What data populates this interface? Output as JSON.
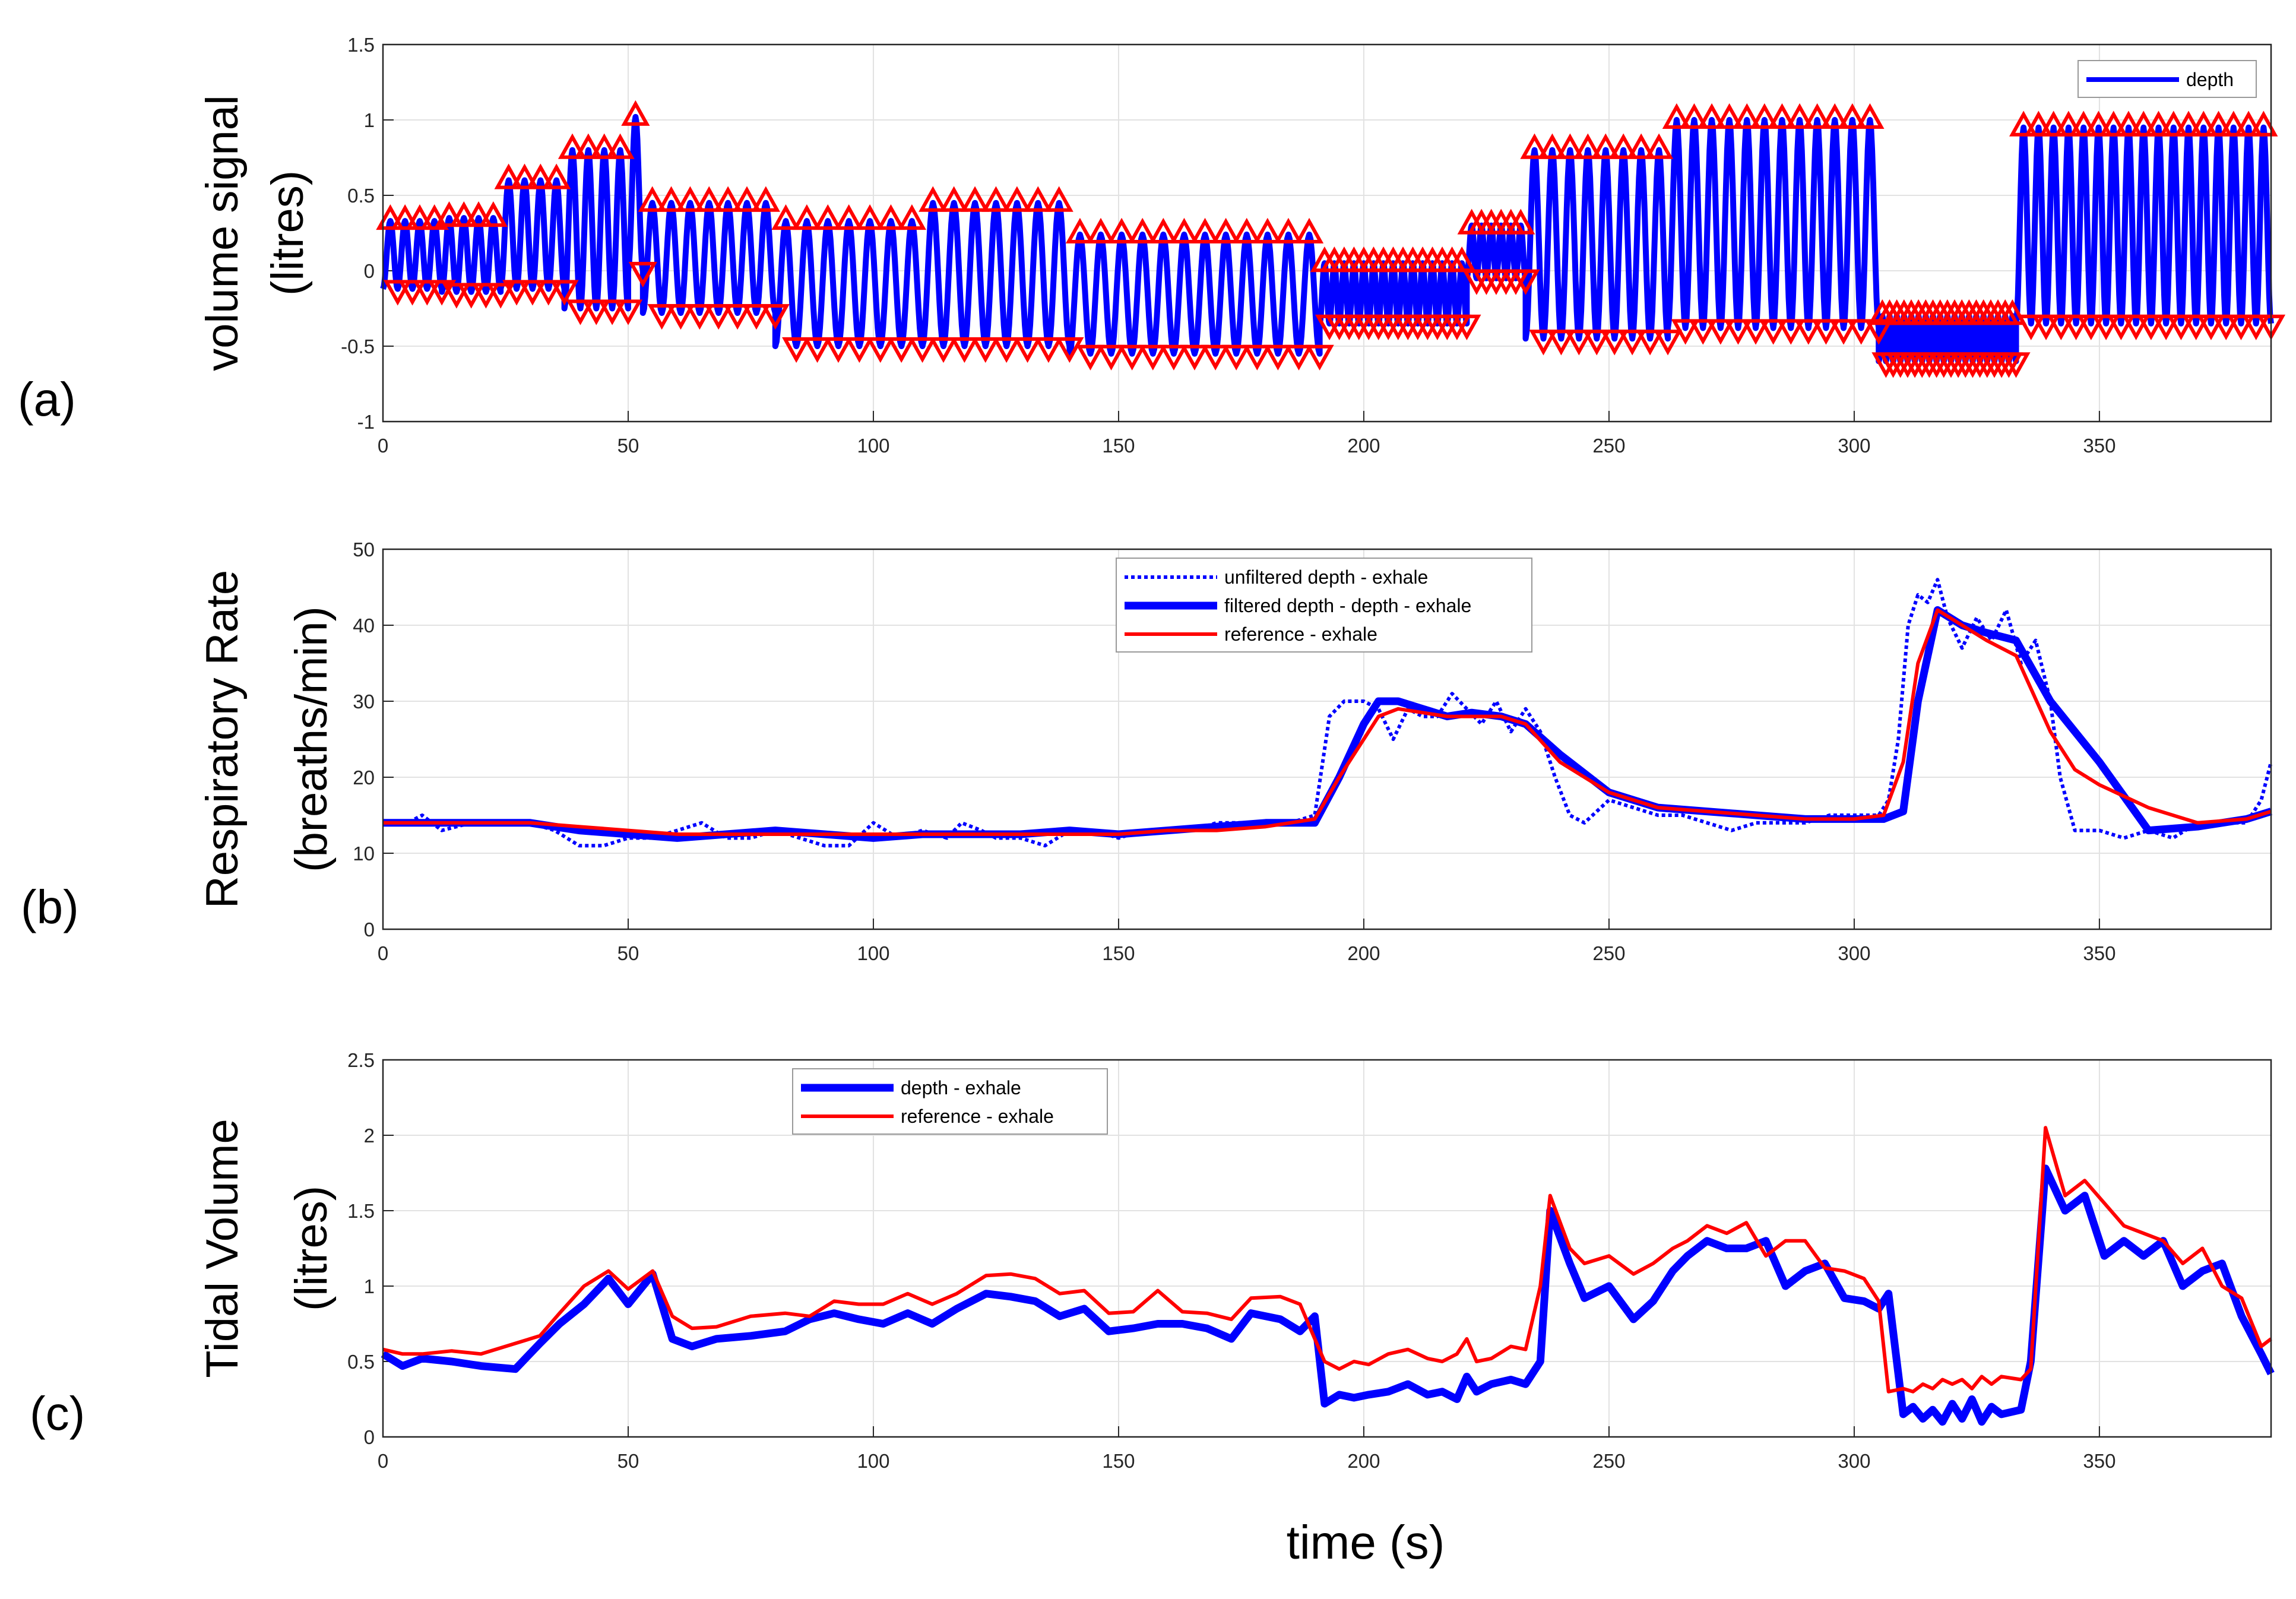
{
  "figure": {
    "xlabel": "time (s)",
    "colors": {
      "blue": "#0000ff",
      "red": "#ff0000",
      "grid": "#e2e2e2",
      "axis": "#262626"
    }
  },
  "chart_data": [
    {
      "panel_label": "(a)",
      "type": "line",
      "ylabel_lines": [
        "volume signal",
        "(litres)"
      ],
      "xlim": [
        0,
        385
      ],
      "ylim": [
        -1,
        1.5
      ],
      "xticks": [
        0,
        50,
        100,
        150,
        200,
        250,
        300,
        350
      ],
      "yticks": [
        -1,
        -0.5,
        0,
        0.5,
        1,
        1.5
      ],
      "ytick_labels": [
        "-1",
        "-0.5",
        "0",
        "0.5",
        "1",
        "1.5"
      ],
      "legend": [
        "depth"
      ],
      "legend_position": "top-right",
      "segments": [
        {
          "t0": 0,
          "t1": 12,
          "period": 2.9,
          "peak": 0.33,
          "trough": -0.12
        },
        {
          "t0": 12,
          "t1": 24,
          "period": 2.9,
          "peak": 0.35,
          "trough": -0.14
        },
        {
          "t0": 24,
          "t1": 37,
          "period": 2.9,
          "peak": 0.6,
          "trough": -0.12
        },
        {
          "t0": 37,
          "t1": 50,
          "period": 2.9,
          "peak": 0.8,
          "trough": -0.25
        },
        {
          "t0": 50,
          "t1": 53,
          "period": 2.9,
          "peak": 1.02,
          "trough": 0
        },
        {
          "t0": 53,
          "t1": 80,
          "period": 4.1,
          "peak": 0.45,
          "trough": -0.28
        },
        {
          "t0": 80,
          "t1": 110,
          "period": 4.1,
          "peak": 0.33,
          "trough": -0.5
        },
        {
          "t0": 110,
          "t1": 140,
          "period": 4.1,
          "peak": 0.45,
          "trough": -0.5
        },
        {
          "t0": 140,
          "t1": 191,
          "period": 4.1,
          "peak": 0.24,
          "trough": -0.55
        },
        {
          "t0": 191,
          "t1": 221,
          "period": 2.05,
          "peak": 0.05,
          "trough": -0.35
        },
        {
          "t0": 221,
          "t1": 233,
          "period": 2.05,
          "peak": 0.3,
          "trough": -0.05
        },
        {
          "t0": 233,
          "t1": 262,
          "period": 3.6,
          "peak": 0.8,
          "trough": -0.45
        },
        {
          "t0": 262,
          "t1": 305,
          "period": 3.6,
          "peak": 1.0,
          "trough": -0.38
        },
        {
          "t0": 305,
          "t1": 333,
          "period": 1.5,
          "peak": -0.3,
          "trough": -0.6
        },
        {
          "t0": 333,
          "t1": 385,
          "period": 3.0,
          "peak": 0.95,
          "trough": -0.35
        }
      ]
    },
    {
      "panel_label": "(b)",
      "type": "line",
      "ylabel_lines": [
        "Respiratory Rate",
        "(breaths/min)"
      ],
      "xlim": [
        0,
        385
      ],
      "ylim": [
        0,
        50
      ],
      "xticks": [
        0,
        50,
        100,
        150,
        200,
        250,
        300,
        350
      ],
      "yticks": [
        0,
        10,
        20,
        30,
        40,
        50
      ],
      "ytick_labels": [
        "0",
        "10",
        "20",
        "30",
        "40",
        "50"
      ],
      "legend": [
        "unfiltered depth - exhale",
        "filtered depth - depth - exhale",
        "reference - exhale"
      ],
      "legend_position": "top-center",
      "series": [
        {
          "name": "unfiltered depth - exhale",
          "style": "dotted",
          "x": [
            0,
            5,
            8,
            12,
            18,
            25,
            30,
            35,
            40,
            45,
            50,
            55,
            60,
            65,
            70,
            75,
            80,
            85,
            90,
            95,
            100,
            105,
            110,
            115,
            118,
            122,
            125,
            130,
            135,
            140,
            145,
            150,
            155,
            160,
            165,
            170,
            175,
            180,
            185,
            190,
            193,
            196,
            200,
            203,
            206,
            209,
            212,
            215,
            218,
            221,
            224,
            227,
            230,
            233,
            236,
            239,
            242,
            245,
            250,
            255,
            260,
            265,
            270,
            275,
            280,
            285,
            290,
            295,
            300,
            305,
            307,
            309,
            311,
            313,
            315,
            317,
            319,
            322,
            325,
            328,
            331,
            334,
            337,
            340,
            342,
            345,
            350,
            355,
            360,
            365,
            370,
            375,
            380,
            383,
            385
          ],
          "y": [
            14,
            14,
            15,
            13,
            14,
            14,
            14,
            13,
            11,
            11,
            12,
            12,
            13,
            14,
            12,
            12,
            13,
            12,
            11,
            11,
            14,
            12,
            13,
            12,
            14,
            13,
            12,
            12,
            11,
            13,
            13,
            12,
            13,
            13,
            13,
            14,
            14,
            14,
            14,
            15,
            28,
            30,
            30,
            29,
            25,
            29,
            28,
            28,
            31,
            29,
            27,
            30,
            26,
            29,
            26,
            20,
            15,
            14,
            17,
            16,
            15,
            15,
            14,
            13,
            14,
            14,
            14,
            15,
            15,
            15,
            17,
            25,
            40,
            44,
            43,
            46,
            41,
            37,
            41,
            38,
            42,
            35,
            38,
            30,
            20,
            13,
            13,
            12,
            13,
            12,
            14,
            14,
            14,
            17,
            22
          ]
        },
        {
          "name": "filtered depth - depth - exhale",
          "style": "thick",
          "x": [
            0,
            10,
            20,
            30,
            40,
            50,
            60,
            70,
            80,
            90,
            100,
            110,
            120,
            130,
            140,
            150,
            160,
            170,
            180,
            190,
            195,
            200,
            203,
            207,
            212,
            217,
            222,
            228,
            233,
            240,
            250,
            260,
            270,
            280,
            290,
            300,
            306,
            310,
            313,
            317,
            322,
            327,
            333,
            340,
            350,
            360,
            370,
            380,
            385
          ],
          "y": [
            14,
            14,
            14,
            14,
            13,
            12.5,
            12,
            12.5,
            13,
            12.5,
            12,
            12.5,
            12.5,
            12.5,
            13,
            12.5,
            13,
            13.5,
            14,
            14,
            20,
            27,
            30,
            30,
            29,
            28,
            28.5,
            28,
            27,
            23,
            18,
            16,
            15.5,
            15,
            14.5,
            14.5,
            14.5,
            15.5,
            30,
            42,
            40,
            39,
            38,
            30,
            22,
            13,
            13.5,
            14.5,
            15.5
          ]
        },
        {
          "name": "reference - exhale",
          "style": "solid",
          "x": [
            0,
            10,
            20,
            30,
            40,
            50,
            60,
            70,
            80,
            90,
            100,
            110,
            120,
            130,
            140,
            150,
            160,
            170,
            180,
            190,
            195,
            200,
            203,
            207,
            212,
            217,
            222,
            228,
            233,
            240,
            250,
            260,
            270,
            280,
            290,
            300,
            306,
            310,
            313,
            317,
            322,
            327,
            333,
            340,
            345,
            350,
            360,
            370,
            380,
            385
          ],
          "y": [
            14,
            14,
            14,
            14,
            13.5,
            13,
            12.5,
            12.5,
            12.5,
            12.5,
            12.5,
            12.5,
            12.5,
            12.5,
            12.5,
            12.5,
            13,
            13,
            13.5,
            14.5,
            20,
            25,
            28,
            29,
            28.5,
            28,
            28,
            28,
            27,
            22,
            18,
            16,
            15.5,
            15,
            14.5,
            14.5,
            15,
            22,
            35,
            42,
            40,
            38,
            36,
            26,
            21,
            19,
            16,
            14,
            14.5,
            15.5
          ]
        }
      ]
    },
    {
      "panel_label": "(c)",
      "type": "line",
      "ylabel_lines": [
        "Tidal Volume",
        "(litres)"
      ],
      "xlim": [
        0,
        385
      ],
      "ylim": [
        0,
        2.5
      ],
      "xticks": [
        0,
        50,
        100,
        150,
        200,
        250,
        300,
        350
      ],
      "yticks": [
        0,
        0.5,
        1,
        1.5,
        2,
        2.5
      ],
      "ytick_labels": [
        "0",
        "0.5",
        "1",
        "1.5",
        "2",
        "2.5"
      ],
      "legend": [
        "depth - exhale",
        "reference - exhale"
      ],
      "legend_position": "top-left",
      "series": [
        {
          "name": "depth - exhale",
          "style": "thick",
          "x": [
            0,
            4,
            8,
            14,
            20,
            27,
            32,
            36,
            41,
            46,
            50,
            55,
            59,
            63,
            68,
            75,
            82,
            87,
            92,
            97,
            102,
            107,
            112,
            117,
            123,
            128,
            133,
            138,
            143,
            148,
            153,
            158,
            163,
            168,
            173,
            177,
            183,
            187,
            190,
            192,
            195,
            198,
            201,
            205,
            209,
            213,
            216,
            219,
            221,
            223,
            226,
            230,
            233,
            236,
            238,
            242,
            245,
            250,
            255,
            259,
            263,
            266,
            270,
            274,
            278,
            282,
            286,
            290,
            294,
            298,
            302,
            305,
            307,
            310,
            312,
            314,
            316,
            318,
            320,
            322,
            324,
            326,
            328,
            330,
            334,
            336,
            339,
            343,
            347,
            351,
            355,
            359,
            363,
            367,
            371,
            375,
            379,
            383,
            385
          ],
          "y": [
            0.55,
            0.47,
            0.52,
            0.5,
            0.47,
            0.45,
            0.62,
            0.75,
            0.88,
            1.05,
            0.88,
            1.08,
            0.65,
            0.6,
            0.65,
            0.67,
            0.7,
            0.78,
            0.82,
            0.78,
            0.75,
            0.82,
            0.75,
            0.85,
            0.95,
            0.93,
            0.9,
            0.8,
            0.85,
            0.7,
            0.72,
            0.75,
            0.75,
            0.72,
            0.65,
            0.82,
            0.78,
            0.7,
            0.8,
            0.22,
            0.28,
            0.26,
            0.28,
            0.3,
            0.35,
            0.28,
            0.3,
            0.25,
            0.4,
            0.3,
            0.35,
            0.38,
            0.35,
            0.5,
            1.5,
            1.15,
            0.92,
            1.0,
            0.78,
            0.9,
            1.1,
            1.2,
            1.3,
            1.25,
            1.25,
            1.3,
            1.0,
            1.1,
            1.15,
            0.92,
            0.9,
            0.85,
            0.95,
            0.15,
            0.2,
            0.12,
            0.18,
            0.1,
            0.22,
            0.12,
            0.25,
            0.1,
            0.2,
            0.15,
            0.18,
            0.5,
            1.78,
            1.5,
            1.6,
            1.2,
            1.3,
            1.2,
            1.3,
            1.0,
            1.1,
            1.15,
            0.8,
            0.55,
            0.42
          ]
        },
        {
          "name": "reference - exhale",
          "style": "solid",
          "x": [
            0,
            4,
            8,
            14,
            20,
            27,
            32,
            36,
            41,
            46,
            50,
            55,
            59,
            63,
            68,
            75,
            82,
            87,
            92,
            97,
            102,
            107,
            112,
            117,
            123,
            128,
            133,
            138,
            143,
            148,
            153,
            158,
            163,
            168,
            173,
            177,
            183,
            187,
            190,
            192,
            195,
            198,
            201,
            205,
            209,
            213,
            216,
            219,
            221,
            223,
            226,
            230,
            233,
            236,
            238,
            242,
            245,
            250,
            255,
            259,
            263,
            266,
            270,
            274,
            278,
            282,
            286,
            290,
            294,
            298,
            302,
            305,
            307,
            310,
            312,
            314,
            316,
            318,
            320,
            322,
            324,
            326,
            328,
            330,
            334,
            336,
            339,
            343,
            347,
            351,
            355,
            359,
            363,
            367,
            371,
            375,
            379,
            383,
            385
          ],
          "y": [
            0.58,
            0.55,
            0.55,
            0.57,
            0.55,
            0.62,
            0.67,
            0.82,
            1.0,
            1.1,
            0.98,
            1.1,
            0.8,
            0.72,
            0.73,
            0.8,
            0.82,
            0.8,
            0.9,
            0.88,
            0.88,
            0.95,
            0.88,
            0.95,
            1.07,
            1.08,
            1.05,
            0.95,
            0.97,
            0.82,
            0.83,
            0.97,
            0.83,
            0.82,
            0.78,
            0.92,
            0.93,
            0.88,
            0.65,
            0.5,
            0.45,
            0.5,
            0.48,
            0.55,
            0.58,
            0.52,
            0.5,
            0.55,
            0.65,
            0.5,
            0.52,
            0.6,
            0.58,
            1.0,
            1.6,
            1.25,
            1.15,
            1.2,
            1.08,
            1.15,
            1.25,
            1.3,
            1.4,
            1.35,
            1.42,
            1.2,
            1.3,
            1.3,
            1.12,
            1.1,
            1.05,
            0.9,
            0.3,
            0.32,
            0.3,
            0.35,
            0.32,
            0.38,
            0.35,
            0.38,
            0.32,
            0.4,
            0.35,
            0.4,
            0.38,
            0.45,
            2.05,
            1.6,
            1.7,
            1.55,
            1.4,
            1.35,
            1.3,
            1.15,
            1.25,
            1.0,
            0.92,
            0.6,
            0.65
          ]
        }
      ]
    }
  ]
}
